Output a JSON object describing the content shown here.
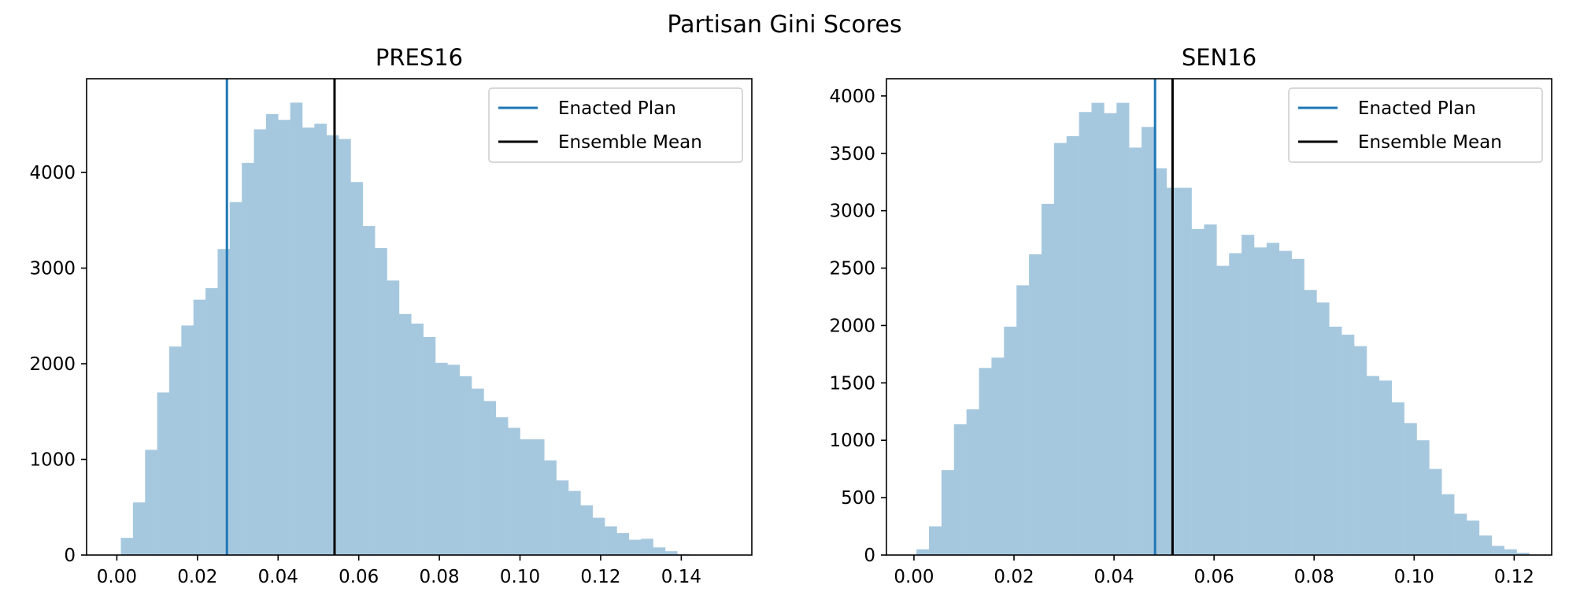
{
  "figure": {
    "suptitle": "Partisan Gini Scores"
  },
  "chart_data": [
    {
      "type": "bar",
      "title": "PRES16",
      "xlabel": "",
      "ylabel": "",
      "xlim": [
        -0.0075,
        0.1575
      ],
      "ylim": [
        0,
        4980
      ],
      "xticks": [
        0.0,
        0.02,
        0.04,
        0.06,
        0.08,
        0.1,
        0.12,
        0.14
      ],
      "xtick_labels": [
        "0.00",
        "0.02",
        "0.04",
        "0.06",
        "0.08",
        "0.10",
        "0.12",
        "0.14"
      ],
      "yticks": [
        0,
        1000,
        2000,
        3000,
        4000
      ],
      "ytick_labels": [
        "0",
        "1000",
        "2000",
        "3000",
        "4000"
      ],
      "bin_width": 0.003,
      "bin_start": 0.001,
      "values": [
        180,
        550,
        1100,
        1700,
        2180,
        2400,
        2670,
        2790,
        3200,
        3690,
        4100,
        4450,
        4610,
        4550,
        4730,
        4470,
        4510,
        4390,
        4350,
        3900,
        3440,
        3210,
        2870,
        2520,
        2420,
        2280,
        2010,
        1990,
        1870,
        1740,
        1610,
        1440,
        1330,
        1210,
        1210,
        990,
        780,
        670,
        520,
        390,
        300,
        230,
        160,
        170,
        80,
        40,
        10
      ],
      "bar_color": "#a6c8df",
      "vlines": [
        {
          "name": "Enacted Plan",
          "x": 0.0273,
          "color": "#1f77b4"
        },
        {
          "name": "Ensemble Mean",
          "x": 0.054,
          "color": "#000000"
        }
      ],
      "legend": {
        "position": "upper right",
        "entries": [
          "Enacted Plan",
          "Ensemble Mean"
        ]
      },
      "grid": false
    },
    {
      "type": "bar",
      "title": "SEN16",
      "xlabel": "",
      "ylabel": "",
      "xlim": [
        -0.0055,
        0.1275
      ],
      "ylim": [
        0,
        4150
      ],
      "xticks": [
        0.0,
        0.02,
        0.04,
        0.06,
        0.08,
        0.1,
        0.12
      ],
      "xtick_labels": [
        "0.00",
        "0.02",
        "0.04",
        "0.06",
        "0.08",
        "0.10",
        "0.12"
      ],
      "yticks": [
        0,
        500,
        1000,
        1500,
        2000,
        2500,
        3000,
        3500,
        4000
      ],
      "ytick_labels": [
        "0",
        "500",
        "1000",
        "1500",
        "2000",
        "2500",
        "3000",
        "3500",
        "4000"
      ],
      "bin_width": 0.0025,
      "bin_start": 0.0005,
      "values": [
        50,
        250,
        740,
        1140,
        1270,
        1630,
        1720,
        1990,
        2350,
        2620,
        3060,
        3590,
        3650,
        3860,
        3940,
        3850,
        3940,
        3550,
        3730,
        3370,
        3200,
        3200,
        2840,
        2880,
        2520,
        2630,
        2790,
        2680,
        2720,
        2650,
        2580,
        2310,
        2200,
        1990,
        1920,
        1820,
        1560,
        1520,
        1330,
        1150,
        1000,
        750,
        530,
        360,
        300,
        170,
        80,
        50,
        20
      ],
      "bar_color": "#a6c8df",
      "vlines": [
        {
          "name": "Enacted Plan",
          "x": 0.0482,
          "color": "#1f77b4"
        },
        {
          "name": "Ensemble Mean",
          "x": 0.0517,
          "color": "#000000"
        }
      ],
      "legend": {
        "position": "upper right",
        "entries": [
          "Enacted Plan",
          "Ensemble Mean"
        ]
      },
      "grid": false
    }
  ]
}
